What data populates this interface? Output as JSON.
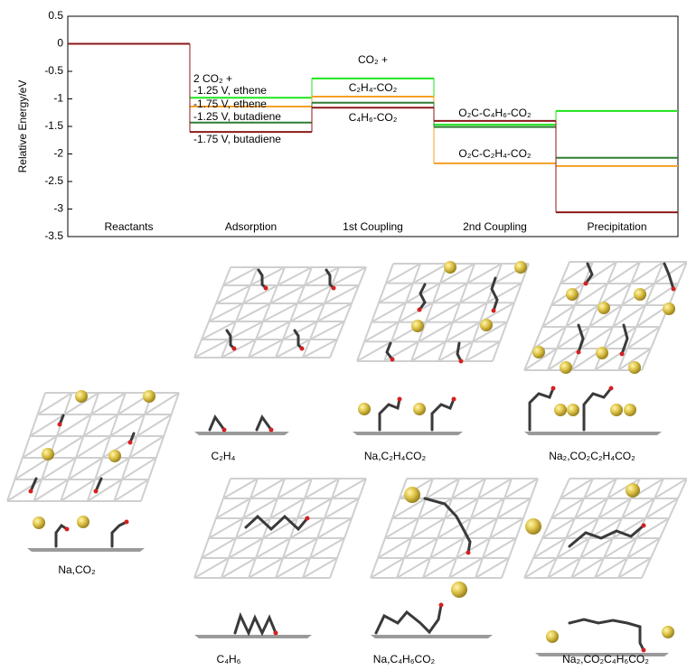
{
  "chart_data": {
    "type": "energy_levels",
    "ylabel": "Relative Energy/eV",
    "categories": [
      "Reactants",
      "Adsorption",
      "1st Coupling",
      "2nd Coupling",
      "Precipitation"
    ],
    "ylim": [
      -3.5,
      0.5
    ],
    "yticks": [
      0.5,
      0,
      -0.5,
      -1,
      -1.5,
      -2,
      -2.5,
      -3,
      -3.5
    ],
    "legend_title": "2 CO₂ +",
    "series": [
      {
        "name": "-1.25 V, ethene",
        "color": "#1ee51e",
        "values": [
          0,
          -0.98,
          -0.63,
          -1.47,
          -1.22
        ]
      },
      {
        "name": "-1.75 V, ethene",
        "color": "#f5a023",
        "values": [
          0,
          -1.14,
          -0.96,
          -2.17,
          -2.22
        ]
      },
      {
        "name": "-1.25 V, butadiene",
        "color": "#2f7d32",
        "values": [
          0,
          -1.43,
          -1.07,
          -1.51,
          -2.07
        ]
      },
      {
        "name": "-1.75 V, butadiene",
        "color": "#8b1a1a",
        "values": [
          0,
          -1.6,
          -1.16,
          -1.4,
          -3.06
        ]
      }
    ],
    "annotations": [
      {
        "text": "CO₂ +",
        "color": "#000000"
      },
      {
        "text": "C₂H₄-CO₂",
        "color": "#2fbf2f"
      },
      {
        "text": "C₄H₆-CO₂",
        "color": "#8b1a1a"
      },
      {
        "text": "O₂C-C₄H₆-CO₂",
        "color": "#8b1a1a"
      },
      {
        "text": "O₂C-C₂H₄-CO₂",
        "color": "#f5a023"
      }
    ]
  },
  "structure_labels": [
    "C₂H₄",
    "Na,C₂H₄CO₂",
    "Na₂,CO₂C₂H₄CO₂",
    "Na,CO₂",
    "C₄H₆",
    "Na,C₄H₆CO₂",
    "Na₂,CO₂C₄H₆CO₂"
  ]
}
